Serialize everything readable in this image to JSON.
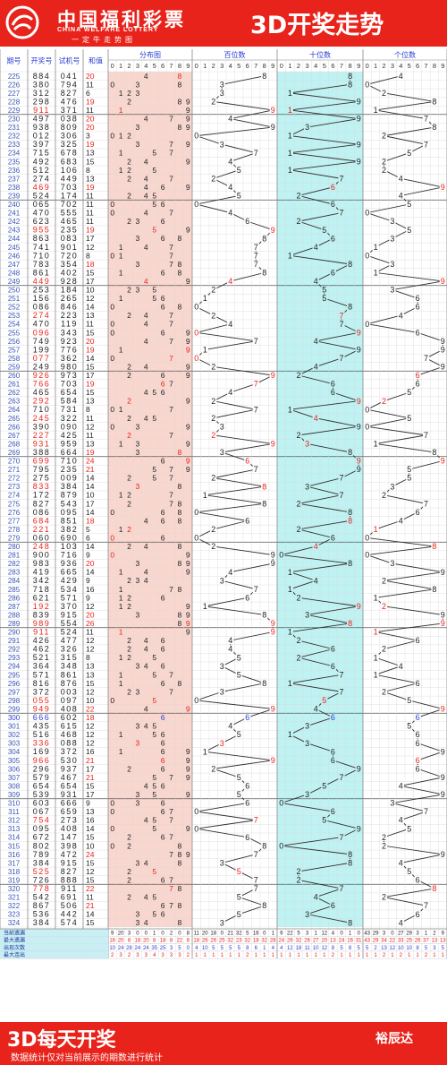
{
  "header": {
    "logo_cn": "中国福利彩票",
    "logo_en": "CHINA WELFARE LOTTERY",
    "logo_sub": "一定牛走势图",
    "title": "3D开奖走势"
  },
  "footer": {
    "title": "3D每天开奖",
    "subtitle": "数据统计仅对当前展示的期数进行统计",
    "brand": "裕辰达"
  },
  "colors": {
    "brand_red": "#e8231b",
    "dist_bg": "#f9d7cf",
    "ten_bg": "#bff2f2",
    "line": "#2f2f2f",
    "hot": "#e8231b",
    "blue": "#2b3fd1"
  },
  "chart_data": {
    "type": "table",
    "columns": [
      "期号",
      "开奖号",
      "试机号",
      "和值",
      "分布图",
      "百位数",
      "十位数",
      "个位数"
    ],
    "digits": [
      "0",
      "1",
      "2",
      "3",
      "4",
      "5",
      "6",
      "7",
      "8",
      "9"
    ],
    "highlight_issues": [
      229,
      238,
      243,
      249,
      253,
      255,
      258,
      260,
      261,
      263,
      265,
      267,
      268,
      270,
      273,
      277,
      278,
      280,
      287,
      289,
      290,
      298,
      299,
      300,
      303,
      305,
      312,
      318,
      320
    ],
    "draws": [
      {
        "issue": 225,
        "award": "884",
        "test": "041",
        "sum": 20
      },
      {
        "issue": 226,
        "award": "380",
        "test": "794",
        "sum": 11
      },
      {
        "issue": 227,
        "award": "312",
        "test": "827",
        "sum": 6
      },
      {
        "issue": 228,
        "award": "298",
        "test": "476",
        "sum": 19
      },
      {
        "issue": 229,
        "award": "911",
        "test": "371",
        "sum": 11
      },
      {
        "issue": 230,
        "award": "497",
        "test": "038",
        "sum": 20
      },
      {
        "issue": 231,
        "award": "938",
        "test": "809",
        "sum": 20
      },
      {
        "issue": 232,
        "award": "012",
        "test": "306",
        "sum": 3
      },
      {
        "issue": 233,
        "award": "397",
        "test": "325",
        "sum": 19
      },
      {
        "issue": 234,
        "award": "715",
        "test": "678",
        "sum": 13
      },
      {
        "issue": 235,
        "award": "492",
        "test": "683",
        "sum": 15
      },
      {
        "issue": 236,
        "award": "512",
        "test": "106",
        "sum": 8
      },
      {
        "issue": 237,
        "award": "274",
        "test": "449",
        "sum": 13
      },
      {
        "issue": 238,
        "award": "469",
        "test": "703",
        "sum": 19
      },
      {
        "issue": 239,
        "award": "524",
        "test": "174",
        "sum": 11
      },
      {
        "issue": 240,
        "award": "065",
        "test": "702",
        "sum": 11
      },
      {
        "issue": 241,
        "award": "470",
        "test": "555",
        "sum": 11
      },
      {
        "issue": 242,
        "award": "623",
        "test": "465",
        "sum": 11
      },
      {
        "issue": 243,
        "award": "955",
        "test": "235",
        "sum": 19
      },
      {
        "issue": 244,
        "award": "863",
        "test": "083",
        "sum": 17
      },
      {
        "issue": 245,
        "award": "741",
        "test": "901",
        "sum": 12
      },
      {
        "issue": 246,
        "award": "710",
        "test": "720",
        "sum": 8
      },
      {
        "issue": 247,
        "award": "783",
        "test": "354",
        "sum": 18
      },
      {
        "issue": 248,
        "award": "861",
        "test": "402",
        "sum": 15
      },
      {
        "issue": 249,
        "award": "449",
        "test": "928",
        "sum": 17
      },
      {
        "issue": 250,
        "award": "253",
        "test": "184",
        "sum": 10
      },
      {
        "issue": 251,
        "award": "156",
        "test": "265",
        "sum": 12
      },
      {
        "issue": 252,
        "award": "086",
        "test": "846",
        "sum": 14
      },
      {
        "issue": 253,
        "award": "274",
        "test": "223",
        "sum": 13
      },
      {
        "issue": 254,
        "award": "470",
        "test": "119",
        "sum": 11
      },
      {
        "issue": 255,
        "award": "096",
        "test": "343",
        "sum": 15
      },
      {
        "issue": 256,
        "award": "749",
        "test": "923",
        "sum": 20
      },
      {
        "issue": 257,
        "award": "199",
        "test": "776",
        "sum": 19
      },
      {
        "issue": 258,
        "award": "077",
        "test": "362",
        "sum": 14
      },
      {
        "issue": 259,
        "award": "249",
        "test": "980",
        "sum": 15
      },
      {
        "issue": 260,
        "award": "926",
        "test": "973",
        "sum": 17
      },
      {
        "issue": 261,
        "award": "766",
        "test": "703",
        "sum": 19
      },
      {
        "issue": 262,
        "award": "465",
        "test": "654",
        "sum": 15
      },
      {
        "issue": 263,
        "award": "292",
        "test": "584",
        "sum": 13
      },
      {
        "issue": 264,
        "award": "710",
        "test": "731",
        "sum": 8
      },
      {
        "issue": 265,
        "award": "245",
        "test": "322",
        "sum": 11
      },
      {
        "issue": 266,
        "award": "390",
        "test": "090",
        "sum": 12
      },
      {
        "issue": 267,
        "award": "227",
        "test": "425",
        "sum": 11
      },
      {
        "issue": 268,
        "award": "931",
        "test": "959",
        "sum": 13
      },
      {
        "issue": 269,
        "award": "388",
        "test": "664",
        "sum": 19
      },
      {
        "issue": 270,
        "award": "699",
        "test": "710",
        "sum": 24
      },
      {
        "issue": 271,
        "award": "795",
        "test": "235",
        "sum": 21
      },
      {
        "issue": 272,
        "award": "275",
        "test": "009",
        "sum": 14
      },
      {
        "issue": 273,
        "award": "833",
        "test": "384",
        "sum": 14
      },
      {
        "issue": 274,
        "award": "172",
        "test": "879",
        "sum": 10
      },
      {
        "issue": 275,
        "award": "827",
        "test": "543",
        "sum": 17
      },
      {
        "issue": 276,
        "award": "086",
        "test": "095",
        "sum": 14
      },
      {
        "issue": 277,
        "award": "684",
        "test": "851",
        "sum": 18
      },
      {
        "issue": 278,
        "award": "221",
        "test": "382",
        "sum": 5
      },
      {
        "issue": 279,
        "award": "060",
        "test": "690",
        "sum": 6
      },
      {
        "issue": 280,
        "award": "248",
        "test": "103",
        "sum": 14
      },
      {
        "issue": 281,
        "award": "900",
        "test": "716",
        "sum": 9
      },
      {
        "issue": 282,
        "award": "983",
        "test": "936",
        "sum": 20
      },
      {
        "issue": 283,
        "award": "419",
        "test": "665",
        "sum": 14
      },
      {
        "issue": 284,
        "award": "342",
        "test": "429",
        "sum": 9
      },
      {
        "issue": 285,
        "award": "718",
        "test": "534",
        "sum": 16
      },
      {
        "issue": 286,
        "award": "621",
        "test": "571",
        "sum": 9
      },
      {
        "issue": 287,
        "award": "192",
        "test": "370",
        "sum": 12
      },
      {
        "issue": 288,
        "award": "839",
        "test": "915",
        "sum": 20
      },
      {
        "issue": 289,
        "award": "989",
        "test": "554",
        "sum": 26
      },
      {
        "issue": 290,
        "award": "911",
        "test": "524",
        "sum": 11
      },
      {
        "issue": 291,
        "award": "426",
        "test": "477",
        "sum": 12
      },
      {
        "issue": 292,
        "award": "462",
        "test": "326",
        "sum": 12
      },
      {
        "issue": 293,
        "award": "521",
        "test": "315",
        "sum": 8
      },
      {
        "issue": 294,
        "award": "364",
        "test": "348",
        "sum": 13
      },
      {
        "issue": 295,
        "award": "571",
        "test": "861",
        "sum": 13
      },
      {
        "issue": 296,
        "award": "816",
        "test": "876",
        "sum": 15
      },
      {
        "issue": 297,
        "award": "372",
        "test": "003",
        "sum": 12
      },
      {
        "issue": 298,
        "award": "055",
        "test": "097",
        "sum": 10
      },
      {
        "issue": 299,
        "award": "949",
        "test": "408",
        "sum": 22
      },
      {
        "issue": 300,
        "award": "666",
        "test": "602",
        "sum": 18
      },
      {
        "issue": 301,
        "award": "435",
        "test": "615",
        "sum": 12
      },
      {
        "issue": 302,
        "award": "516",
        "test": "468",
        "sum": 12
      },
      {
        "issue": 303,
        "award": "336",
        "test": "088",
        "sum": 12
      },
      {
        "issue": 304,
        "award": "169",
        "test": "372",
        "sum": 16
      },
      {
        "issue": 305,
        "award": "966",
        "test": "530",
        "sum": 21
      },
      {
        "issue": 306,
        "award": "296",
        "test": "937",
        "sum": 17
      },
      {
        "issue": 307,
        "award": "579",
        "test": "467",
        "sum": 21
      },
      {
        "issue": 308,
        "award": "654",
        "test": "654",
        "sum": 15
      },
      {
        "issue": 309,
        "award": "539",
        "test": "931",
        "sum": 17
      },
      {
        "issue": 310,
        "award": "603",
        "test": "666",
        "sum": 9
      },
      {
        "issue": 311,
        "award": "067",
        "test": "659",
        "sum": 13
      },
      {
        "issue": 312,
        "award": "754",
        "test": "273",
        "sum": 16
      },
      {
        "issue": 313,
        "award": "095",
        "test": "408",
        "sum": 14
      },
      {
        "issue": 314,
        "award": "672",
        "test": "147",
        "sum": 15
      },
      {
        "issue": 315,
        "award": "802",
        "test": "398",
        "sum": 10
      },
      {
        "issue": 316,
        "award": "789",
        "test": "472",
        "sum": 24
      },
      {
        "issue": 317,
        "award": "384",
        "test": "915",
        "sum": 15
      },
      {
        "issue": 318,
        "award": "525",
        "test": "827",
        "sum": 12
      },
      {
        "issue": 319,
        "award": "726",
        "test": "888",
        "sum": 15
      },
      {
        "issue": 320,
        "award": "778",
        "test": "911",
        "sum": 22
      },
      {
        "issue": 321,
        "award": "542",
        "test": "691",
        "sum": 11
      },
      {
        "issue": 322,
        "award": "867",
        "test": "506",
        "sum": 21
      },
      {
        "issue": 323,
        "award": "536",
        "test": "442",
        "sum": 14
      },
      {
        "issue": 324,
        "award": "384",
        "test": "574",
        "sum": 15
      }
    ],
    "stats": [
      {
        "label": "当前遗漏",
        "dist": [
          9,
          20,
          3,
          0,
          0,
          1,
          0,
          2,
          0,
          8
        ],
        "hundreds": [
          11,
          20,
          18,
          0,
          21,
          32,
          5,
          16,
          0,
          1
        ],
        "tens": [
          9,
          22,
          5,
          3,
          1,
          12,
          4,
          0,
          1,
          0
        ],
        "units": [
          43,
          29,
          3,
          0,
          27,
          29,
          3,
          1,
          2,
          9
        ]
      },
      {
        "label": "最大遗漏",
        "dist": [
          16,
          20,
          8,
          18,
          20,
          8,
          18,
          8,
          22,
          8
        ],
        "hundreds": [
          18,
          26,
          26,
          25,
          32,
          23,
          32,
          18,
          32,
          28
        ],
        "tens": [
          24,
          26,
          32,
          26,
          27,
          20,
          13,
          24,
          16,
          31
        ],
        "units": [
          43,
          29,
          34,
          22,
          33,
          25,
          26,
          37,
          13,
          13
        ]
      },
      {
        "label": "出现次数",
        "dist": [
          10,
          24,
          28,
          24,
          24,
          35,
          25,
          3,
          5,
          0
        ],
        "hundreds": [
          4,
          10,
          5,
          5,
          5,
          5,
          8,
          6,
          1,
          4
        ],
        "tens": [
          4,
          12,
          18,
          11,
          10,
          12,
          8,
          5,
          8,
          5
        ],
        "units": [
          5,
          2,
          13,
          12,
          10,
          10,
          8,
          5,
          3,
          5
        ]
      },
      {
        "label": "最大连出",
        "dist": [
          2,
          3,
          2,
          3,
          3,
          4,
          3,
          3,
          3,
          2
        ],
        "hundreds": [
          1,
          1,
          1,
          1,
          1,
          1,
          2,
          1,
          1,
          1
        ],
        "tens": [
          1,
          1,
          1,
          1,
          1,
          1,
          2,
          1,
          1,
          1
        ],
        "units": [
          1,
          1,
          2,
          1,
          2,
          1,
          1,
          2,
          1,
          1
        ]
      }
    ]
  }
}
